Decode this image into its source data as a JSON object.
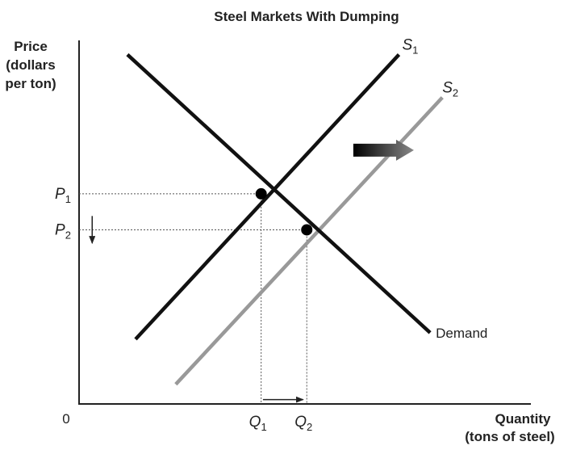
{
  "chart_data": {
    "type": "line",
    "title": "Steel Markets With Dumping",
    "ylabel_lines": [
      "Price",
      "(dollars",
      "per ton)"
    ],
    "xlabel_lines": [
      "Quantity",
      "(tons of steel)"
    ],
    "origin_label": "0",
    "x_ticks": [
      {
        "main": "Q",
        "sub": "1",
        "value": 40.3
      },
      {
        "main": "Q",
        "sub": "2",
        "value": 50.4
      }
    ],
    "y_ticks": [
      {
        "main": "P",
        "sub": "1",
        "value": 57.8
      },
      {
        "main": "P",
        "sub": "2",
        "value": 47.9
      }
    ],
    "series": [
      {
        "name": "S",
        "name_sub": "1",
        "color": "#111111",
        "x": [
          12.5,
          70.8
        ],
        "y": [
          17.8,
          96.1
        ]
      },
      {
        "name": "S",
        "name_sub": "2",
        "color": "#999999",
        "x": [
          21.4,
          80.4
        ],
        "y": [
          5.4,
          84.3
        ]
      },
      {
        "name": "Demand",
        "name_sub": "",
        "color": "#111111",
        "x": [
          10.7,
          77.7
        ],
        "y": [
          96.1,
          19.6
        ]
      }
    ],
    "equilibria": [
      {
        "x": 40.3,
        "y": 57.8
      },
      {
        "x": 50.4,
        "y": 47.9
      }
    ],
    "annotations": {
      "supply_shift_arrow": {
        "from": [
          60.7,
          69.8
        ],
        "to": [
          74.1,
          69.8
        ],
        "color_start": "#000000",
        "color_end": "#888888"
      },
      "price_arrow": {
        "from": [
          2.9,
          51.7
        ],
        "to": [
          2.9,
          44.2
        ]
      },
      "quantity_arrow": {
        "from": [
          40.7,
          1.2
        ],
        "to": [
          49.6,
          1.2
        ]
      }
    },
    "xlim": [
      0,
      100
    ],
    "ylim": [
      0,
      100
    ],
    "grid": false
  }
}
